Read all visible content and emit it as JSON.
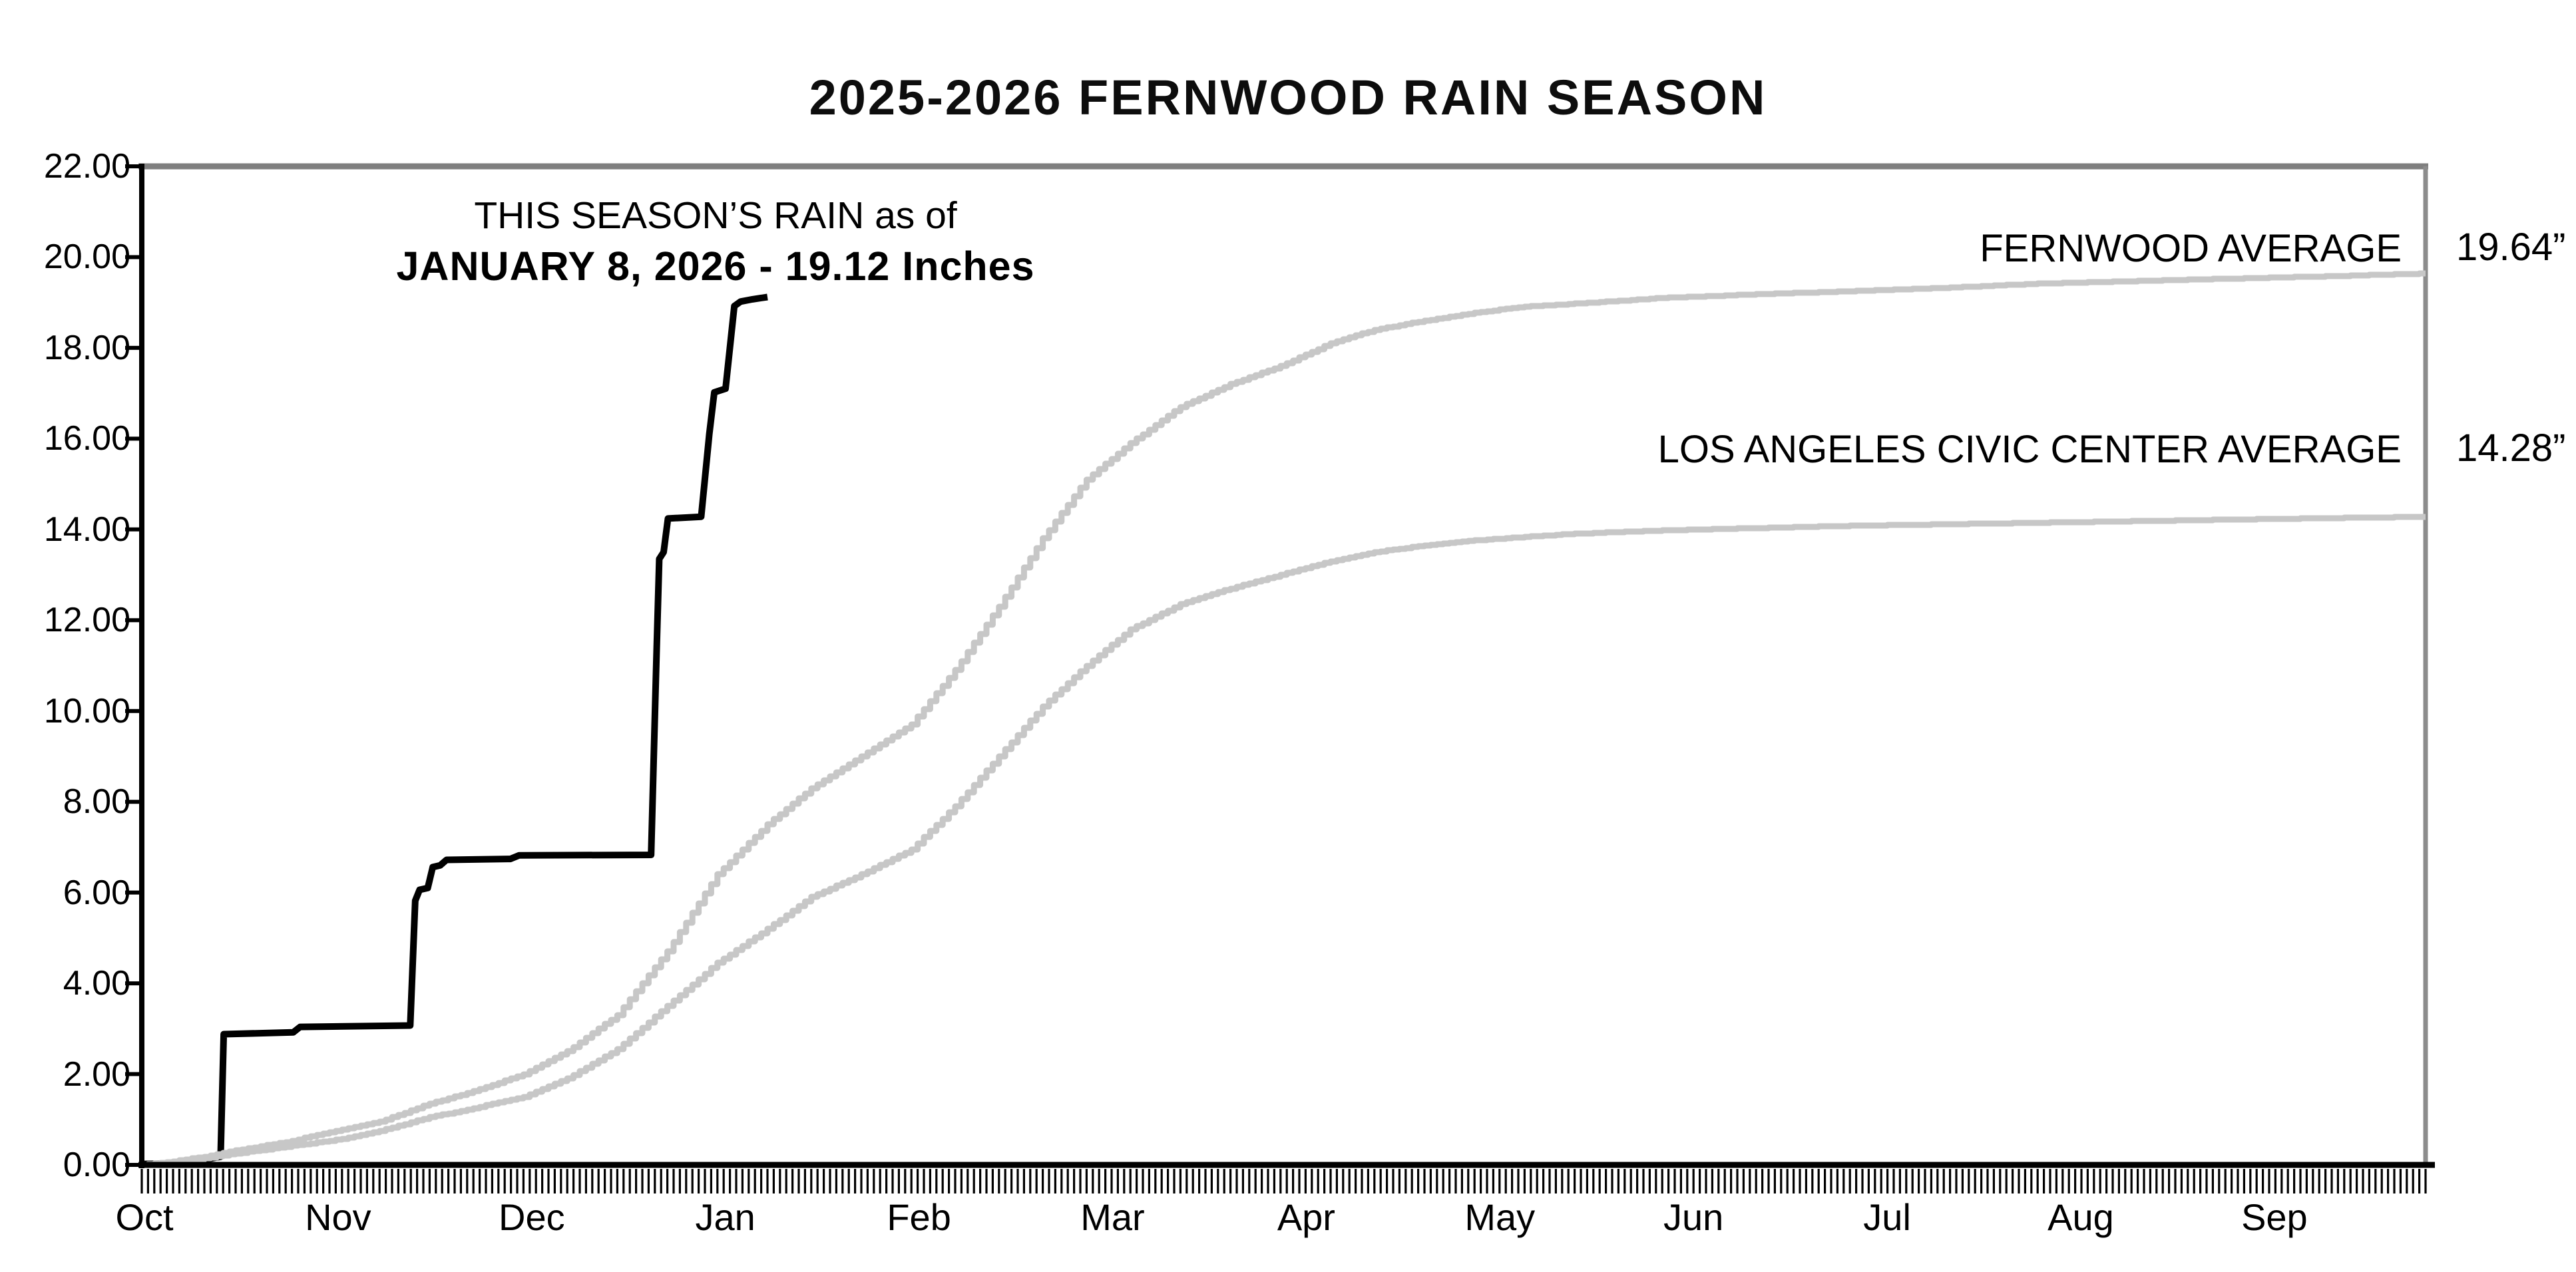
{
  "title": "2025-2026 FERNWOOD RAIN SEASON",
  "annotation": {
    "line1": "THIS SEASON’S RAIN as of",
    "line2": "JANUARY 8, 2026 - 19.12 Inches"
  },
  "labels": {
    "fernwood_average": "FERNWOOD AVERAGE",
    "fernwood_average_value": "19.64”",
    "la_average": "LOS ANGELES CIVIC CENTER AVERAGE",
    "la_average_value": "14.28”"
  },
  "colors": {
    "season_line": "#000000",
    "average_line": "#c7c7c7",
    "top_border": "#7f7f7f",
    "right_border": "#8c8c8c",
    "axis": "#000000",
    "text": "#0d0d0d"
  },
  "chart_data": {
    "type": "line",
    "title": "2025-2026 FERNWOOD RAIN SEASON",
    "xlabel": "",
    "ylabel": "",
    "x_axis": {
      "unit": "day of season (Oct 1 = 0)",
      "range_days": [
        0,
        365
      ],
      "month_labels": [
        "Oct",
        "Nov",
        "Dec",
        "Jan",
        "Feb",
        "Mar",
        "Apr",
        "May",
        "Jun",
        "Jul",
        "Aug",
        "Sep"
      ],
      "daily_minor_ticks": true
    },
    "y_axis": {
      "min": 0,
      "max": 22,
      "tick_step": 2,
      "tick_labels": [
        "0.00",
        "2.00",
        "4.00",
        "6.00",
        "8.00",
        "10.00",
        "12.00",
        "14.00",
        "16.00",
        "18.00",
        "20.00",
        "22.00"
      ],
      "grid": false
    },
    "legend_position": "inline-right",
    "series": [
      {
        "name": "THIS SEASON'S RAIN",
        "as_of": "JANUARY 8, 2026",
        "final_value_inches": 19.12,
        "style": "step",
        "color_key": "season_line",
        "points": [
          [
            0,
            0.02
          ],
          [
            5,
            0.03
          ],
          [
            9,
            0.09
          ],
          [
            12.6,
            0.18
          ],
          [
            13.1,
            2.88
          ],
          [
            24.2,
            2.92
          ],
          [
            25.3,
            3.04
          ],
          [
            42.9,
            3.07
          ],
          [
            43.7,
            5.82
          ],
          [
            44.4,
            6.06
          ],
          [
            45.7,
            6.1
          ],
          [
            46.5,
            6.56
          ],
          [
            47.7,
            6.6
          ],
          [
            48.7,
            6.72
          ],
          [
            58.9,
            6.74
          ],
          [
            60.3,
            6.82
          ],
          [
            81.4,
            6.83
          ],
          [
            82.3,
            11.4
          ],
          [
            82.7,
            13.35
          ],
          [
            83.4,
            13.5
          ],
          [
            84.1,
            14.24
          ],
          [
            89.4,
            14.28
          ],
          [
            90.7,
            16.1
          ],
          [
            91.5,
            17.02
          ],
          [
            93.3,
            17.1
          ],
          [
            94.7,
            18.92
          ],
          [
            95.7,
            19.02
          ],
          [
            97.6,
            19.07
          ],
          [
            100,
            19.12
          ]
        ]
      },
      {
        "name": "FERNWOOD AVERAGE",
        "final_value_inches": 19.64,
        "value_label": "19.64”",
        "style": "daily-steps",
        "color_key": "average_line",
        "points": [
          [
            0,
            0
          ],
          [
            5,
            0.08
          ],
          [
            10,
            0.18
          ],
          [
            15,
            0.32
          ],
          [
            23,
            0.5
          ],
          [
            31,
            0.75
          ],
          [
            38,
            0.95
          ],
          [
            46,
            1.35
          ],
          [
            53,
            1.62
          ],
          [
            61,
            2.0
          ],
          [
            68,
            2.5
          ],
          [
            76,
            3.3
          ],
          [
            84,
            4.7
          ],
          [
            92,
            6.4
          ],
          [
            100,
            7.5
          ],
          [
            107,
            8.3
          ],
          [
            115,
            9.0
          ],
          [
            123,
            9.7
          ],
          [
            130,
            10.9
          ],
          [
            137,
            12.3
          ],
          [
            144,
            13.8
          ],
          [
            151,
            15.1
          ],
          [
            158,
            15.9
          ],
          [
            166,
            16.7
          ],
          [
            174,
            17.2
          ],
          [
            182,
            17.6
          ],
          [
            190,
            18.1
          ],
          [
            197,
            18.4
          ],
          [
            205,
            18.6
          ],
          [
            212,
            18.75
          ],
          [
            220,
            18.9
          ],
          [
            232,
            19.0
          ],
          [
            243,
            19.1
          ],
          [
            258,
            19.18
          ],
          [
            273,
            19.25
          ],
          [
            289,
            19.33
          ],
          [
            304,
            19.42
          ],
          [
            318,
            19.47
          ],
          [
            335,
            19.53
          ],
          [
            350,
            19.58
          ],
          [
            365,
            19.64
          ]
        ]
      },
      {
        "name": "LOS ANGELES CIVIC CENTER AVERAGE",
        "final_value_inches": 14.28,
        "value_label": "14.28”",
        "style": "daily-steps",
        "color_key": "average_line",
        "points": [
          [
            0,
            0
          ],
          [
            5,
            0.06
          ],
          [
            10,
            0.14
          ],
          [
            15,
            0.25
          ],
          [
            23,
            0.4
          ],
          [
            31,
            0.55
          ],
          [
            38,
            0.75
          ],
          [
            46,
            1.05
          ],
          [
            53,
            1.25
          ],
          [
            61,
            1.5
          ],
          [
            68,
            1.9
          ],
          [
            76,
            2.55
          ],
          [
            84,
            3.5
          ],
          [
            92,
            4.45
          ],
          [
            100,
            5.2
          ],
          [
            107,
            5.9
          ],
          [
            115,
            6.4
          ],
          [
            123,
            6.95
          ],
          [
            130,
            7.9
          ],
          [
            137,
            9.0
          ],
          [
            144,
            10.1
          ],
          [
            151,
            11.0
          ],
          [
            158,
            11.8
          ],
          [
            166,
            12.35
          ],
          [
            174,
            12.7
          ],
          [
            182,
            13.0
          ],
          [
            190,
            13.3
          ],
          [
            197,
            13.5
          ],
          [
            205,
            13.65
          ],
          [
            212,
            13.75
          ],
          [
            228,
            13.9
          ],
          [
            243,
            13.98
          ],
          [
            273,
            14.08
          ],
          [
            304,
            14.15
          ],
          [
            335,
            14.22
          ],
          [
            365,
            14.28
          ]
        ]
      }
    ]
  }
}
